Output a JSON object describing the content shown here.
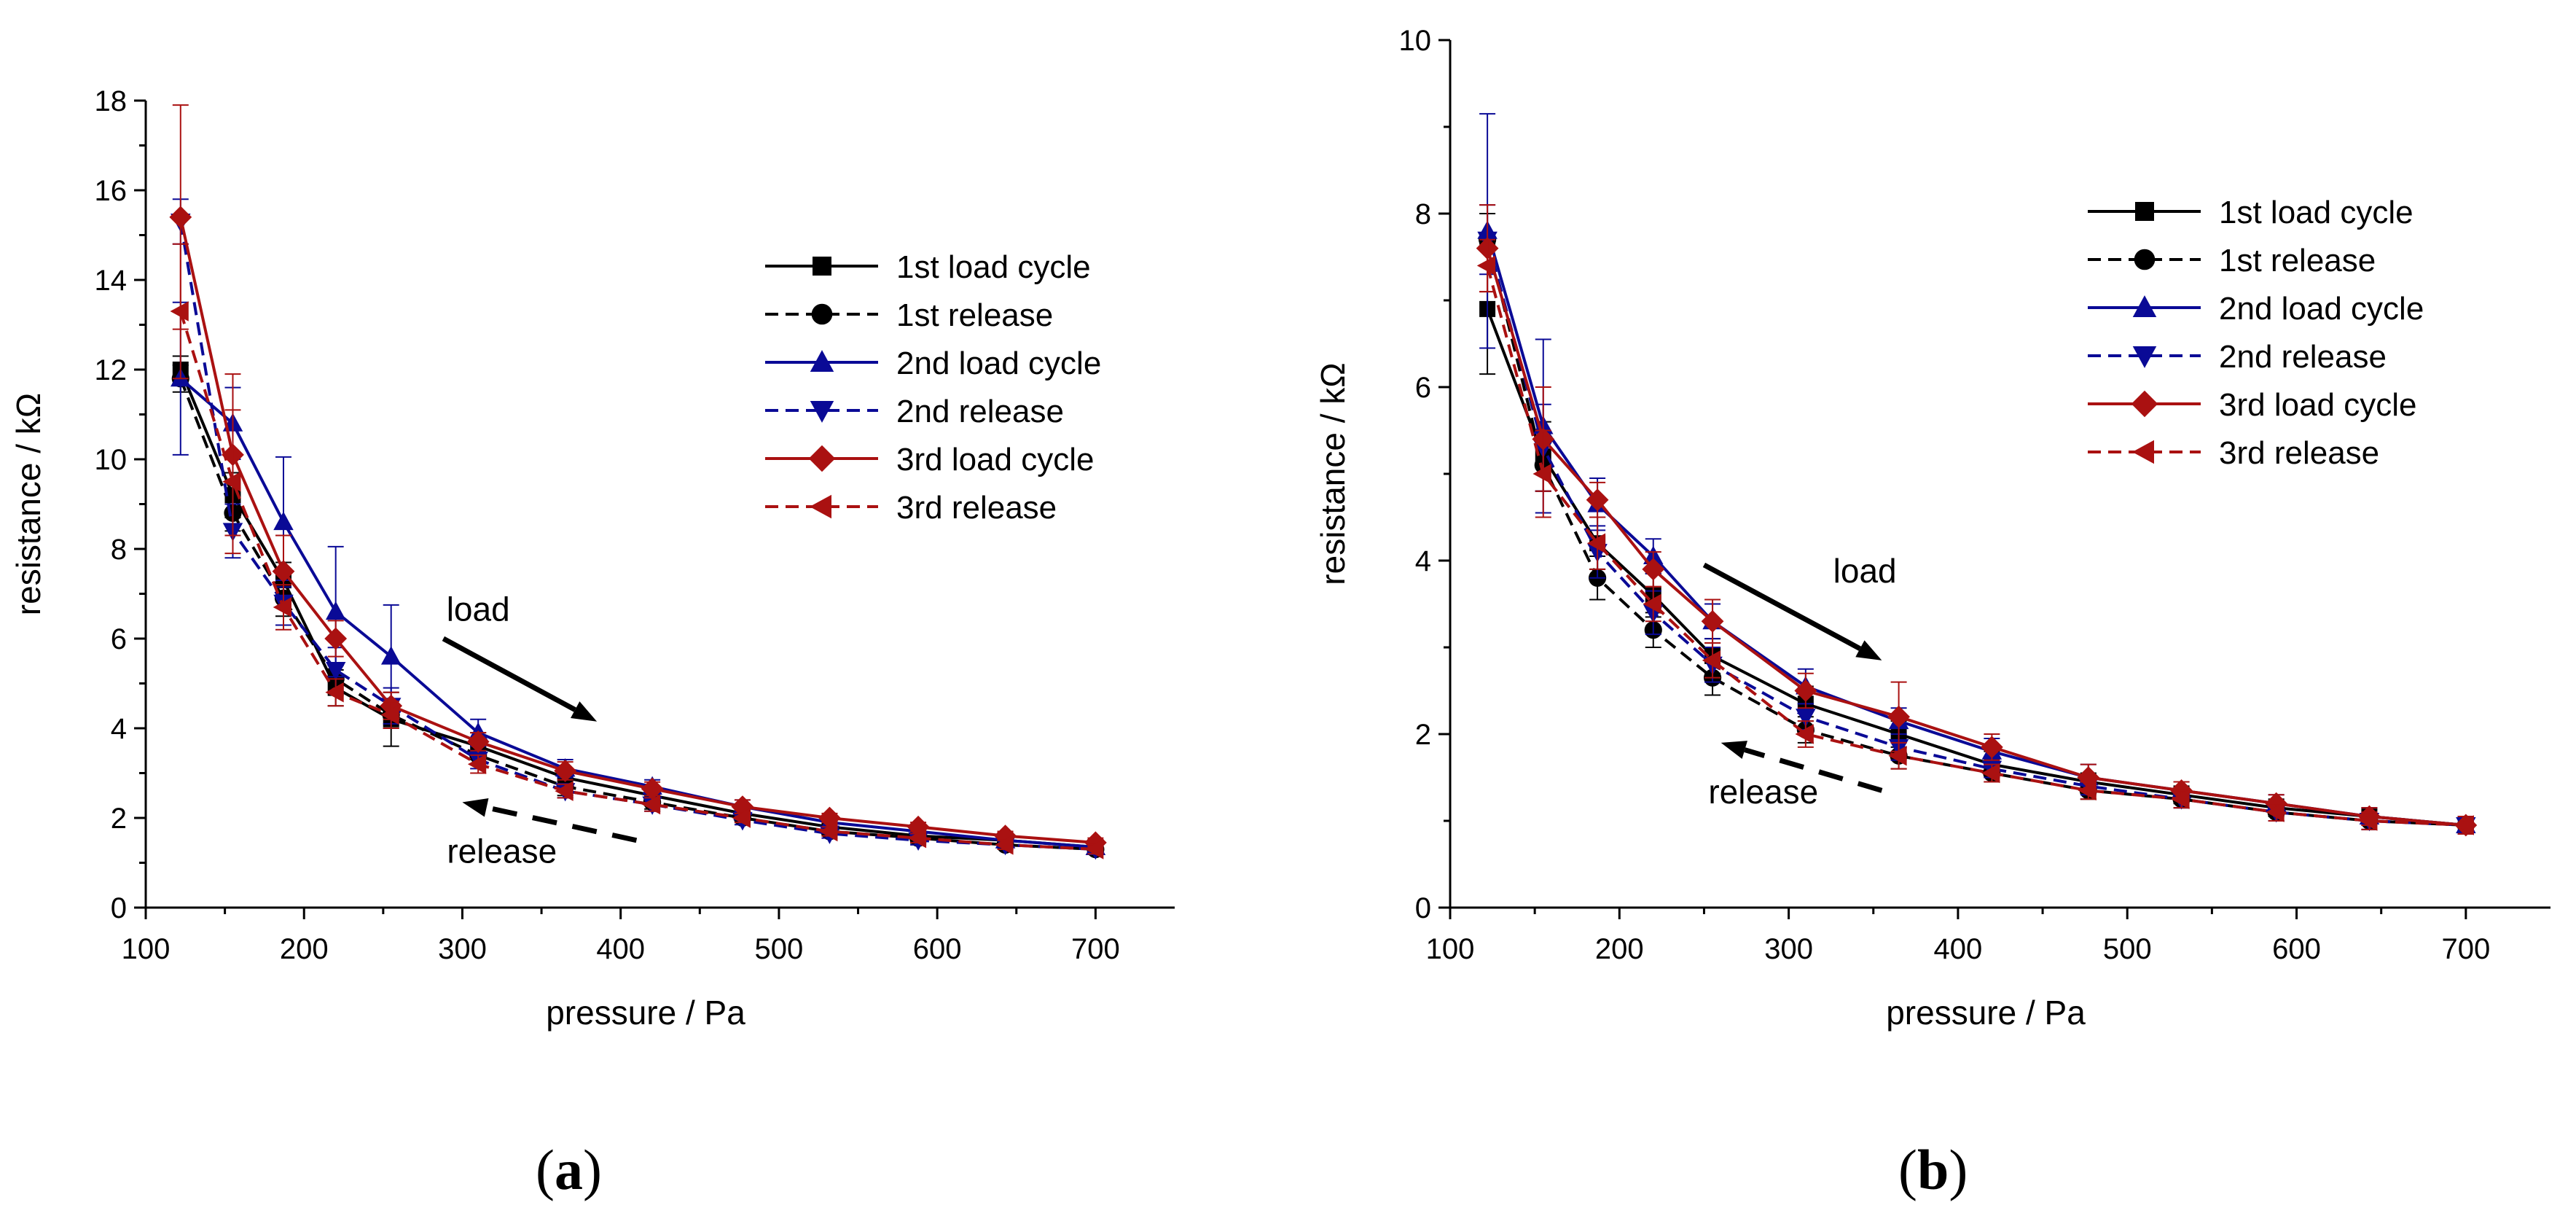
{
  "chart_data": [
    {
      "panel": "(a)",
      "panel_letter": "a",
      "type": "line",
      "xlabel": "pressure / Pa",
      "ylabel": "resistance / kΩ",
      "xlim": [
        100,
        750
      ],
      "ylim": [
        0,
        18
      ],
      "xticks": [
        100,
        200,
        300,
        400,
        500,
        600,
        700
      ],
      "yticks": [
        0,
        2,
        4,
        6,
        8,
        10,
        12,
        14,
        16,
        18
      ],
      "x": [
        122,
        155,
        187,
        220,
        255,
        310,
        365,
        420,
        477,
        532,
        588,
        643,
        700
      ],
      "series": [
        {
          "name": "1st load cycle",
          "color": "#000000",
          "dash": false,
          "marker": "square",
          "values": [
            12.0,
            9.2,
            7.3,
            4.9,
            4.2,
            3.6,
            2.9,
            2.5,
            2.1,
            1.8,
            1.6,
            1.5,
            1.35
          ],
          "errors": [
            0.3,
            0.5,
            0.4,
            0.4,
            0.6,
            0.3,
            0.2,
            0.15,
            0.15,
            0.1,
            0.1,
            0.1,
            0.1
          ]
        },
        {
          "name": "1st release",
          "color": "#000000",
          "dash": true,
          "marker": "circle",
          "values": [
            11.8,
            8.8,
            6.9,
            5.1,
            4.3,
            3.4,
            2.7,
            2.35,
            2.0,
            1.7,
            1.55,
            1.4,
            1.3
          ],
          "errors": [
            0.3,
            0.4,
            0.4,
            0.3,
            0.3,
            0.2,
            0.2,
            0.15,
            0.1,
            0.1,
            0.1,
            0.1,
            0.1
          ]
        },
        {
          "name": "2nd load cycle",
          "color": "#0a0a96",
          "dash": false,
          "marker": "triangle-up",
          "values": [
            11.8,
            10.8,
            8.6,
            6.6,
            5.6,
            3.9,
            3.1,
            2.7,
            2.25,
            1.9,
            1.7,
            1.5,
            1.35
          ],
          "errors": [
            1.7,
            0.8,
            1.45,
            1.45,
            1.15,
            0.3,
            0.2,
            0.15,
            0.15,
            0.1,
            0.1,
            0.1,
            0.1
          ]
        },
        {
          "name": "2nd release",
          "color": "#0a0a96",
          "dash": true,
          "marker": "triangle-down",
          "values": [
            15.3,
            8.4,
            6.8,
            5.3,
            4.5,
            3.3,
            2.6,
            2.3,
            1.95,
            1.65,
            1.5,
            1.4,
            1.3
          ],
          "errors": [
            0.5,
            0.6,
            0.5,
            0.5,
            0.4,
            0.2,
            0.15,
            0.15,
            0.1,
            0.1,
            0.1,
            0.1,
            0.1
          ]
        },
        {
          "name": "3rd load cycle",
          "color": "#aa1111",
          "dash": false,
          "marker": "diamond",
          "values": [
            15.4,
            10.1,
            7.5,
            6.0,
            4.5,
            3.7,
            3.05,
            2.65,
            2.25,
            2.0,
            1.8,
            1.6,
            1.45
          ],
          "errors": [
            2.5,
            1.8,
            0.8,
            0.4,
            0.3,
            0.2,
            0.2,
            0.15,
            0.15,
            0.1,
            0.1,
            0.1,
            0.1
          ]
        },
        {
          "name": "3rd release",
          "color": "#aa1111",
          "dash": true,
          "marker": "triangle-left",
          "values": [
            13.3,
            9.5,
            6.7,
            4.8,
            4.3,
            3.2,
            2.6,
            2.3,
            2.0,
            1.7,
            1.55,
            1.4,
            1.3
          ],
          "errors": [
            1.5,
            1.6,
            0.5,
            0.3,
            0.3,
            0.2,
            0.15,
            0.15,
            0.1,
            0.1,
            0.1,
            0.1,
            0.1
          ]
        }
      ],
      "annotations": [
        {
          "text": "load",
          "x": 310,
          "y": 6.4,
          "arrow_from": [
            288,
            6.0
          ],
          "arrow_to": [
            385,
            4.15
          ]
        },
        {
          "text": "release",
          "x": 325,
          "y": 1.0,
          "arrow_from": [
            410,
            1.5
          ],
          "arrow_to": [
            300,
            2.35
          ]
        }
      ]
    },
    {
      "panel": "(b)",
      "panel_letter": "b",
      "type": "line",
      "xlabel": "pressure / Pa",
      "ylabel": "resistance / kΩ",
      "xlim": [
        100,
        750
      ],
      "ylim": [
        0,
        10
      ],
      "xticks": [
        100,
        200,
        300,
        400,
        500,
        600,
        700
      ],
      "yticks": [
        0,
        2,
        4,
        6,
        8,
        10
      ],
      "x": [
        122,
        155,
        187,
        220,
        255,
        310,
        365,
        420,
        477,
        532,
        588,
        643,
        700
      ],
      "series": [
        {
          "name": "1st load cycle",
          "color": "#000000",
          "dash": false,
          "marker": "square",
          "values": [
            6.9,
            5.2,
            4.2,
            3.6,
            2.9,
            2.35,
            2.0,
            1.65,
            1.45,
            1.3,
            1.15,
            1.05,
            0.95
          ],
          "errors": [
            0.75,
            0.4,
            0.3,
            0.25,
            0.2,
            0.2,
            0.15,
            0.15,
            0.1,
            0.1,
            0.1,
            0.1,
            0.1
          ]
        },
        {
          "name": "1st release",
          "color": "#000000",
          "dash": true,
          "marker": "circle",
          "values": [
            7.7,
            5.1,
            3.8,
            3.2,
            2.65,
            2.05,
            1.75,
            1.55,
            1.35,
            1.25,
            1.1,
            1.0,
            0.95
          ],
          "errors": [
            0.3,
            0.3,
            0.25,
            0.2,
            0.2,
            0.15,
            0.15,
            0.1,
            0.1,
            0.1,
            0.1,
            0.1,
            0.1
          ]
        },
        {
          "name": "2nd load cycle",
          "color": "#0a0a96",
          "dash": false,
          "marker": "triangle-up",
          "values": [
            7.8,
            5.55,
            4.65,
            4.05,
            3.3,
            2.55,
            2.15,
            1.8,
            1.5,
            1.35,
            1.2,
            1.05,
            0.95
          ],
          "errors": [
            1.35,
            1.0,
            0.3,
            0.2,
            0.2,
            0.2,
            0.15,
            0.15,
            0.15,
            0.1,
            0.1,
            0.1,
            0.1
          ]
        },
        {
          "name": "2nd release",
          "color": "#0a0a96",
          "dash": true,
          "marker": "triangle-down",
          "values": [
            7.7,
            5.3,
            4.1,
            3.4,
            2.8,
            2.2,
            1.85,
            1.6,
            1.4,
            1.25,
            1.1,
            1.0,
            0.95
          ],
          "errors": [
            0.4,
            0.5,
            0.3,
            0.25,
            0.2,
            0.15,
            0.15,
            0.1,
            0.1,
            0.1,
            0.1,
            0.1,
            0.1
          ]
        },
        {
          "name": "3rd load cycle",
          "color": "#aa1111",
          "dash": false,
          "marker": "diamond",
          "values": [
            7.6,
            5.4,
            4.7,
            3.9,
            3.3,
            2.5,
            2.2,
            1.85,
            1.5,
            1.35,
            1.2,
            1.05,
            0.95
          ],
          "errors": [
            0.5,
            0.6,
            0.2,
            0.2,
            0.25,
            0.2,
            0.4,
            0.15,
            0.15,
            0.1,
            0.1,
            0.1,
            0.1
          ]
        },
        {
          "name": "3rd release",
          "color": "#aa1111",
          "dash": true,
          "marker": "triangle-left",
          "values": [
            7.4,
            5.0,
            4.2,
            3.5,
            2.85,
            2.0,
            1.75,
            1.55,
            1.35,
            1.25,
            1.1,
            1.0,
            0.95
          ],
          "errors": [
            0.3,
            0.5,
            0.3,
            0.2,
            0.2,
            0.15,
            0.15,
            0.1,
            0.1,
            0.1,
            0.1,
            0.1,
            0.1
          ]
        }
      ],
      "annotations": [
        {
          "text": "load",
          "x": 345,
          "y": 3.75,
          "arrow_from": [
            250,
            3.95
          ],
          "arrow_to": [
            355,
            2.85
          ]
        },
        {
          "text": "release",
          "x": 285,
          "y": 1.2,
          "arrow_from": [
            355,
            1.35
          ],
          "arrow_to": [
            260,
            1.9
          ]
        }
      ]
    }
  ]
}
